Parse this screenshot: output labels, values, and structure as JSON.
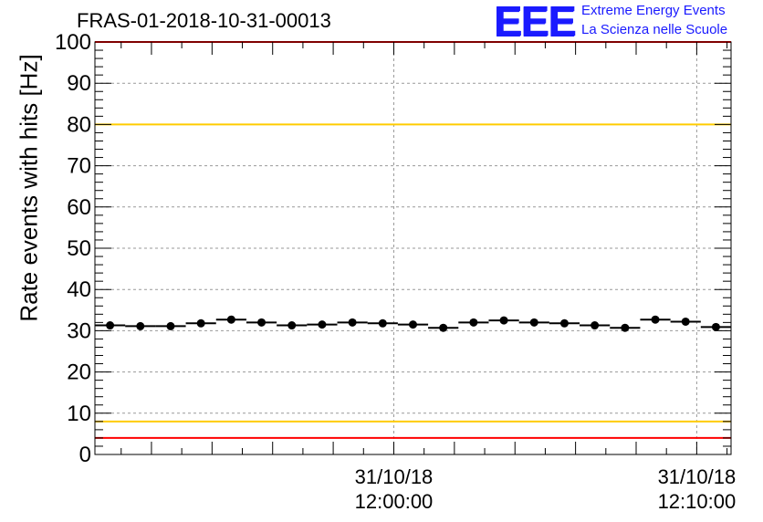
{
  "title": "FRAS-01-2018-10-31-00013",
  "logo": {
    "mark": "EEE",
    "line1": "Extreme Energy Events",
    "line2": "La Scienza nelle Scuole",
    "color": "#1a1aff"
  },
  "chart_data": {
    "type": "scatter",
    "title": "FRAS-01-2018-10-31-00013",
    "ylabel": "Rate events with hits [Hz]",
    "xlabel": "",
    "ylim": [
      0,
      100
    ],
    "xlim": [
      "2018-10-31 11:50:08",
      "2018-10-31 12:11:08"
    ],
    "yticks": [
      0,
      10,
      20,
      30,
      40,
      50,
      60,
      70,
      80,
      90,
      100
    ],
    "xticks": [
      {
        "date": "31/10/18",
        "time": "12:00:00",
        "x": "2018-10-31 12:00:00"
      },
      {
        "date": "31/10/18",
        "time": "12:10:00",
        "x": "2018-10-31 12:10:00"
      }
    ],
    "grid": true,
    "error_bar_width_seconds": 60,
    "series": [
      {
        "marker": "circle",
        "color": "#000000",
        "x": [
          "11:50:38",
          "11:51:38",
          "11:52:38",
          "11:53:38",
          "11:54:38",
          "11:55:38",
          "11:56:38",
          "11:57:38",
          "11:58:38",
          "11:59:38",
          "12:00:38",
          "12:01:38",
          "12:02:38",
          "12:03:38",
          "12:04:38",
          "12:05:38",
          "12:06:38",
          "12:07:38",
          "12:08:38",
          "12:09:38",
          "12:10:38"
        ],
        "values": [
          31.3,
          31.1,
          31.1,
          31.8,
          32.7,
          32.0,
          31.3,
          31.5,
          32.0,
          31.8,
          31.5,
          30.7,
          32.0,
          32.5,
          32.0,
          31.8,
          31.3,
          30.7,
          32.7,
          32.2,
          30.9
        ]
      }
    ],
    "reference_lines": [
      {
        "y": 100,
        "color": "#ff0000"
      },
      {
        "y": 80,
        "color": "#ffcc00"
      },
      {
        "y": 8,
        "color": "#ffcc00"
      },
      {
        "y": 4,
        "color": "#ff0000"
      }
    ]
  }
}
